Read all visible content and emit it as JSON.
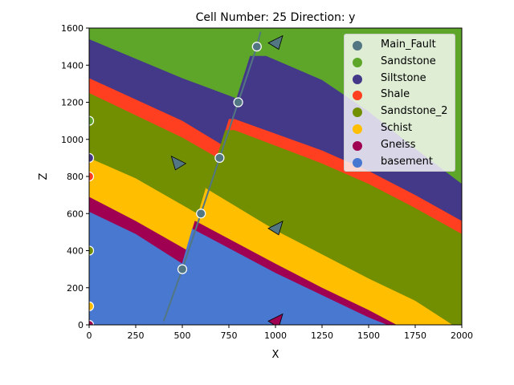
{
  "chart_data": {
    "type": "area",
    "title": "Cell Number: 25 Direction: y",
    "xlabel": "X",
    "ylabel": "Z",
    "xlim": [
      0,
      2000
    ],
    "ylim": [
      0,
      1600
    ],
    "xticks": [
      "0",
      "250",
      "500",
      "750",
      "1000",
      "1250",
      "1500",
      "1750",
      "2000"
    ],
    "yticks": [
      "0",
      "200",
      "400",
      "600",
      "800",
      "1000",
      "1200",
      "1400",
      "1600"
    ],
    "grid": false,
    "legend_position": "upper right",
    "colors": {
      "Main_Fault": "#527682",
      "Sandstone": "#5DA629",
      "Siltstone": "#443988",
      "Shale": "#FF3F20",
      "Sandstone_2": "#728F02",
      "Schist": "#FFBE00",
      "Gneiss": "#9F0052",
      "basement": "#4878D0"
    },
    "legend": [
      "Main_Fault",
      "Sandstone",
      "Siltstone",
      "Shale",
      "Sandstone_2",
      "Schist",
      "Gneiss",
      "basement"
    ],
    "series": [
      {
        "name": "Siltstone",
        "left_x": [
          0,
          500,
          900
        ],
        "left_top_z": [
          1540,
          1330,
          1180
        ],
        "right_x": [
          950,
          1250,
          1500,
          1750,
          2000
        ],
        "right_top_z": [
          1450,
          1320,
          1150,
          950,
          760
        ]
      },
      {
        "name": "Shale",
        "left_x": [
          0,
          500,
          780
        ],
        "left_top_z": [
          1330,
          1100,
          930
        ],
        "right_x": [
          780,
          1250,
          1500,
          1750,
          2000
        ],
        "right_top_z": [
          1110,
          940,
          830,
          700,
          560
        ]
      },
      {
        "name": "Sandstone_2",
        "left_x": [
          0,
          500,
          760
        ],
        "left_top_z": [
          1250,
          1010,
          860
        ],
        "right_x": [
          780,
          1250,
          1500,
          1750,
          2000
        ],
        "right_top_z": [
          1050,
          870,
          760,
          630,
          490
        ]
      },
      {
        "name": "Schist",
        "left_x": [
          0,
          250,
          580
        ],
        "left_top_z": [
          900,
          790,
          600
        ],
        "right_x": [
          620,
          1000,
          1250,
          1500,
          1750,
          1950
        ],
        "right_top_z": [
          740,
          510,
          380,
          250,
          130,
          0
        ]
      },
      {
        "name": "Gneiss",
        "left_x": [
          0,
          250,
          530
        ],
        "left_top_z": [
          690,
          560,
          400
        ],
        "right_x": [
          570,
          1000,
          1250,
          1500,
          1650
        ],
        "right_top_z": [
          560,
          330,
          200,
          80,
          0
        ]
      },
      {
        "name": "basement",
        "left_x": [
          0,
          250,
          500
        ],
        "left_top_z": [
          610,
          490,
          330
        ],
        "right_x": [
          550,
          1000,
          1250,
          1500,
          1600
        ],
        "right_top_z": [
          520,
          280,
          160,
          40,
          0
        ]
      }
    ],
    "fault": {
      "name": "Main_Fault",
      "x": [
        400,
        500,
        600,
        700,
        800,
        900,
        920
      ],
      "z": [
        20,
        300,
        600,
        900,
        1200,
        1500,
        1580
      ]
    },
    "fault_points": [
      {
        "x": 500,
        "z": 300
      },
      {
        "x": 600,
        "z": 600
      },
      {
        "x": 700,
        "z": 900
      },
      {
        "x": 800,
        "z": 1200
      },
      {
        "x": 900,
        "z": 1500
      }
    ],
    "interface_points": [
      {
        "x": 0,
        "z": 1100,
        "layer": "Sandstone"
      },
      {
        "x": 0,
        "z": 900,
        "layer": "Siltstone"
      },
      {
        "x": 0,
        "z": 800,
        "layer": "Shale"
      },
      {
        "x": 0,
        "z": 400,
        "layer": "Sandstone_2"
      },
      {
        "x": 0,
        "z": 100,
        "layer": "Schist"
      },
      {
        "x": 0,
        "z": 0,
        "layer": "Gneiss"
      }
    ],
    "orientations": [
      {
        "x": 1000,
        "z": 1520,
        "layer": "Main_Fault",
        "direction": "right"
      },
      {
        "x": 480,
        "z": 870,
        "layer": "Main_Fault",
        "direction": "left"
      },
      {
        "x": 1000,
        "z": 520,
        "layer": "Main_Fault",
        "direction": "right"
      },
      {
        "x": 1000,
        "z": 20,
        "layer": "Gneiss",
        "direction": "right"
      }
    ]
  }
}
